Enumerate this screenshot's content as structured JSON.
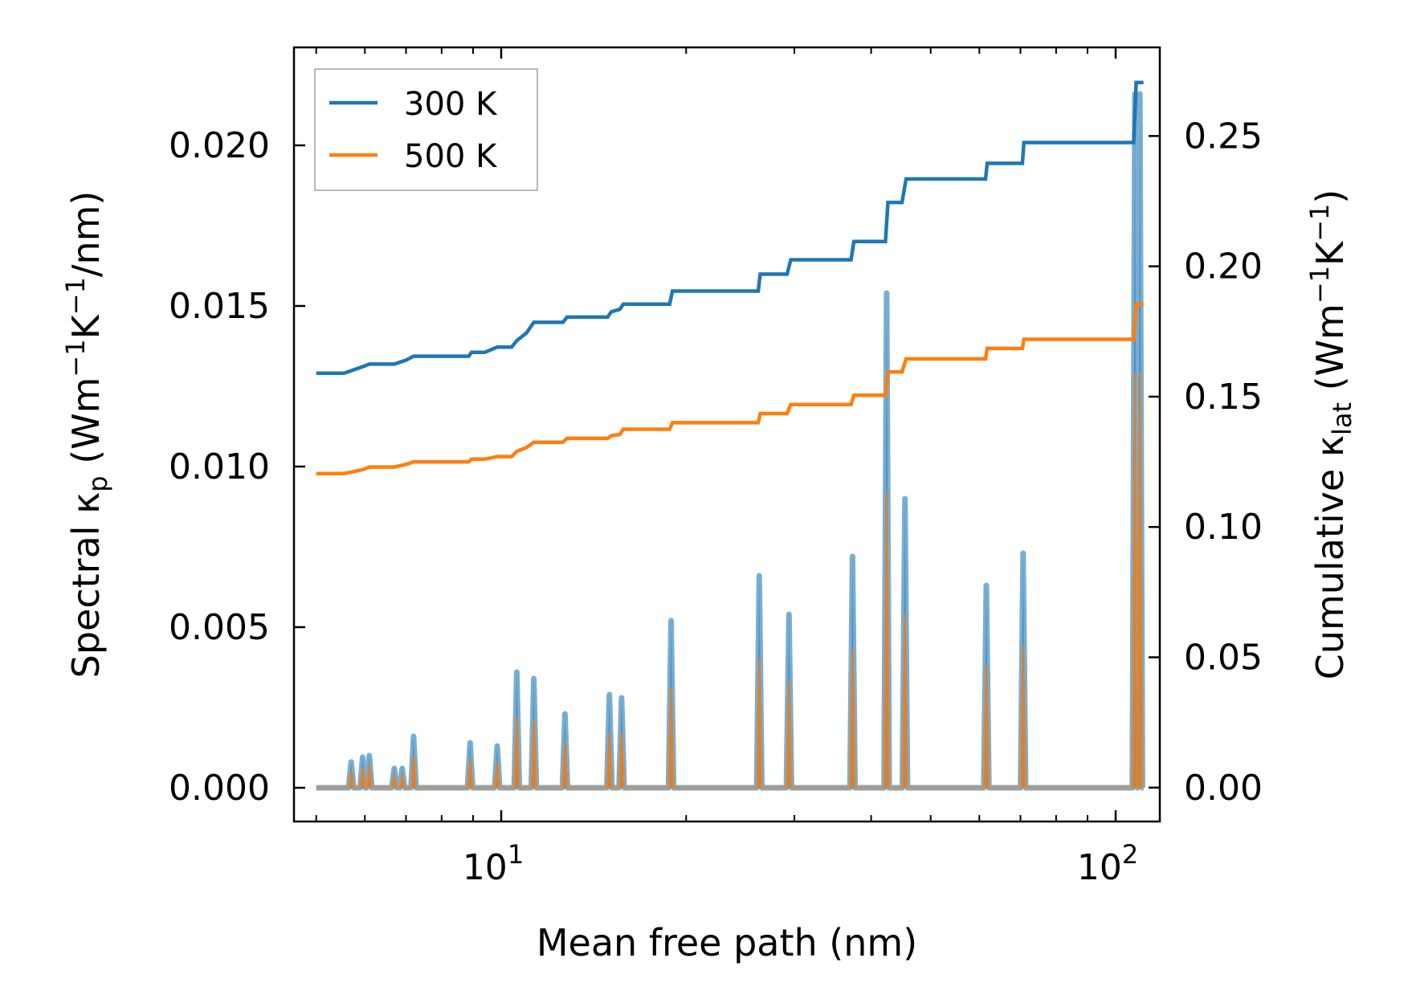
{
  "chart_data": {
    "type": "line",
    "xlabel": "Mean free path (nm)",
    "xscale": "log",
    "xlim": [
      4.6,
      118
    ],
    "ylabel_left": {
      "prefix": "Spectral κ",
      "sub": "p",
      "unit_a": " (Wm",
      "sup1": "−1",
      "unit_b": "K",
      "sup2": "−1",
      "unit_c": "/nm)"
    },
    "ylabel_right": {
      "prefix": "Cumulative κ",
      "sub": "lat",
      "unit_a": " (Wm",
      "sup1": "−1",
      "unit_b": "K",
      "sup2": "−1",
      "unit_c": ")"
    },
    "ylim_left": [
      -0.00105,
      0.02305
    ],
    "ylim_right": [
      -0.013,
      0.284
    ],
    "x_ticks": [
      {
        "base": "10",
        "exp": "1",
        "value": 10
      },
      {
        "base": "10",
        "exp": "2",
        "value": 100
      }
    ],
    "y_ticks_left": [
      "0.000",
      "0.005",
      "0.010",
      "0.015",
      "0.020"
    ],
    "y_ticks_left_values": [
      0,
      0.005,
      0.01,
      0.015,
      0.02
    ],
    "y_ticks_right": [
      "0.00",
      "0.05",
      "0.10",
      "0.15",
      "0.20",
      "0.25"
    ],
    "y_ticks_right_values": [
      0,
      0.05,
      0.1,
      0.15,
      0.2,
      0.25
    ],
    "legend": {
      "position": "upper left",
      "entries": [
        {
          "label": "300 K",
          "color": "#1f77b4"
        },
        {
          "label": "500 K",
          "color": "#ff7f0e"
        }
      ]
    },
    "spectral_series": [
      {
        "name": "300 K",
        "color": "#1f77b4",
        "peaks": [
          [
            5.7,
            0.0008
          ],
          [
            5.95,
            0.00095
          ],
          [
            6.1,
            0.001
          ],
          [
            6.7,
            0.0006
          ],
          [
            6.9,
            0.0006
          ],
          [
            7.2,
            0.0016
          ],
          [
            8.9,
            0.0014
          ],
          [
            9.85,
            0.0013
          ],
          [
            10.6,
            0.0036
          ],
          [
            11.3,
            0.0034
          ],
          [
            12.7,
            0.0023
          ],
          [
            15.0,
            0.0029
          ],
          [
            15.7,
            0.0028
          ],
          [
            18.9,
            0.0052
          ],
          [
            26.3,
            0.0066
          ],
          [
            29.4,
            0.0054
          ],
          [
            37.3,
            0.0072
          ],
          [
            42.4,
            0.0154
          ],
          [
            45.4,
            0.009
          ],
          [
            61.6,
            0.0063
          ],
          [
            70.7,
            0.0073
          ],
          [
            107.5,
            0.0216
          ],
          [
            109.5,
            0.0216
          ]
        ]
      },
      {
        "name": "500 K",
        "color": "#ff7f0e",
        "peaks": [
          [
            5.7,
            0.0005
          ],
          [
            5.95,
            0.0006
          ],
          [
            6.1,
            0.0007
          ],
          [
            6.7,
            0.0004
          ],
          [
            6.9,
            0.0004
          ],
          [
            7.2,
            0.001
          ],
          [
            8.9,
            0.0009
          ],
          [
            9.85,
            0.0008
          ],
          [
            10.6,
            0.0022
          ],
          [
            11.3,
            0.0021
          ],
          [
            12.7,
            0.0014
          ],
          [
            15.0,
            0.0017
          ],
          [
            15.7,
            0.0017
          ],
          [
            18.9,
            0.0031
          ],
          [
            26.3,
            0.004
          ],
          [
            29.4,
            0.0033
          ],
          [
            37.3,
            0.0043
          ],
          [
            42.4,
            0.0092
          ],
          [
            45.4,
            0.0054
          ],
          [
            61.6,
            0.0038
          ],
          [
            70.7,
            0.0044
          ],
          [
            107.5,
            0.0129
          ],
          [
            109.5,
            0.0129
          ]
        ]
      }
    ],
    "cumulative_series": [
      {
        "name": "300 K",
        "color": "#1f77b4",
        "points": [
          [
            5.0,
            0.159
          ],
          [
            5.55,
            0.159
          ],
          [
            5.95,
            0.1615
          ],
          [
            6.1,
            0.1625
          ],
          [
            6.7,
            0.1625
          ],
          [
            7.0,
            0.164
          ],
          [
            7.2,
            0.1655
          ],
          [
            8.85,
            0.1655
          ],
          [
            8.95,
            0.167
          ],
          [
            9.4,
            0.167
          ],
          [
            9.85,
            0.169
          ],
          [
            10.4,
            0.169
          ],
          [
            10.6,
            0.1715
          ],
          [
            11.0,
            0.1745
          ],
          [
            11.3,
            0.1785
          ],
          [
            12.6,
            0.1785
          ],
          [
            12.8,
            0.1805
          ],
          [
            14.9,
            0.1805
          ],
          [
            15.1,
            0.1825
          ],
          [
            15.6,
            0.1835
          ],
          [
            15.8,
            0.1855
          ],
          [
            18.8,
            0.1855
          ],
          [
            19.0,
            0.1905
          ],
          [
            26.2,
            0.1905
          ],
          [
            26.4,
            0.197
          ],
          [
            29.2,
            0.197
          ],
          [
            29.6,
            0.2025
          ],
          [
            37.1,
            0.2025
          ],
          [
            37.5,
            0.2095
          ],
          [
            42.2,
            0.2095
          ],
          [
            42.6,
            0.2245
          ],
          [
            44.9,
            0.2245
          ],
          [
            45.6,
            0.2335
          ],
          [
            61.4,
            0.2335
          ],
          [
            61.8,
            0.2395
          ],
          [
            70.5,
            0.2395
          ],
          [
            70.9,
            0.2475
          ],
          [
            107.0,
            0.2475
          ],
          [
            108.0,
            0.2705
          ],
          [
            111.0,
            0.2705
          ]
        ]
      },
      {
        "name": "500 K",
        "color": "#ff7f0e",
        "points": [
          [
            5.0,
            0.1205
          ],
          [
            5.55,
            0.1205
          ],
          [
            5.95,
            0.122
          ],
          [
            6.1,
            0.123
          ],
          [
            6.7,
            0.123
          ],
          [
            7.0,
            0.124
          ],
          [
            7.2,
            0.125
          ],
          [
            8.85,
            0.125
          ],
          [
            8.95,
            0.126
          ],
          [
            9.4,
            0.126
          ],
          [
            9.85,
            0.127
          ],
          [
            10.4,
            0.127
          ],
          [
            10.6,
            0.129
          ],
          [
            11.0,
            0.1305
          ],
          [
            11.3,
            0.1325
          ],
          [
            12.6,
            0.1325
          ],
          [
            12.8,
            0.134
          ],
          [
            14.9,
            0.134
          ],
          [
            15.1,
            0.135
          ],
          [
            15.6,
            0.1355
          ],
          [
            15.8,
            0.1375
          ],
          [
            18.8,
            0.1375
          ],
          [
            19.0,
            0.14
          ],
          [
            26.2,
            0.14
          ],
          [
            26.4,
            0.1435
          ],
          [
            29.2,
            0.1435
          ],
          [
            29.6,
            0.147
          ],
          [
            37.1,
            0.147
          ],
          [
            37.5,
            0.1505
          ],
          [
            42.2,
            0.1505
          ],
          [
            42.6,
            0.1595
          ],
          [
            44.9,
            0.1595
          ],
          [
            45.6,
            0.1645
          ],
          [
            61.4,
            0.1645
          ],
          [
            61.8,
            0.1685
          ],
          [
            70.5,
            0.1685
          ],
          [
            70.9,
            0.172
          ],
          [
            107.0,
            0.172
          ],
          [
            108.0,
            0.1855
          ],
          [
            111.0,
            0.1855
          ]
        ]
      }
    ]
  }
}
